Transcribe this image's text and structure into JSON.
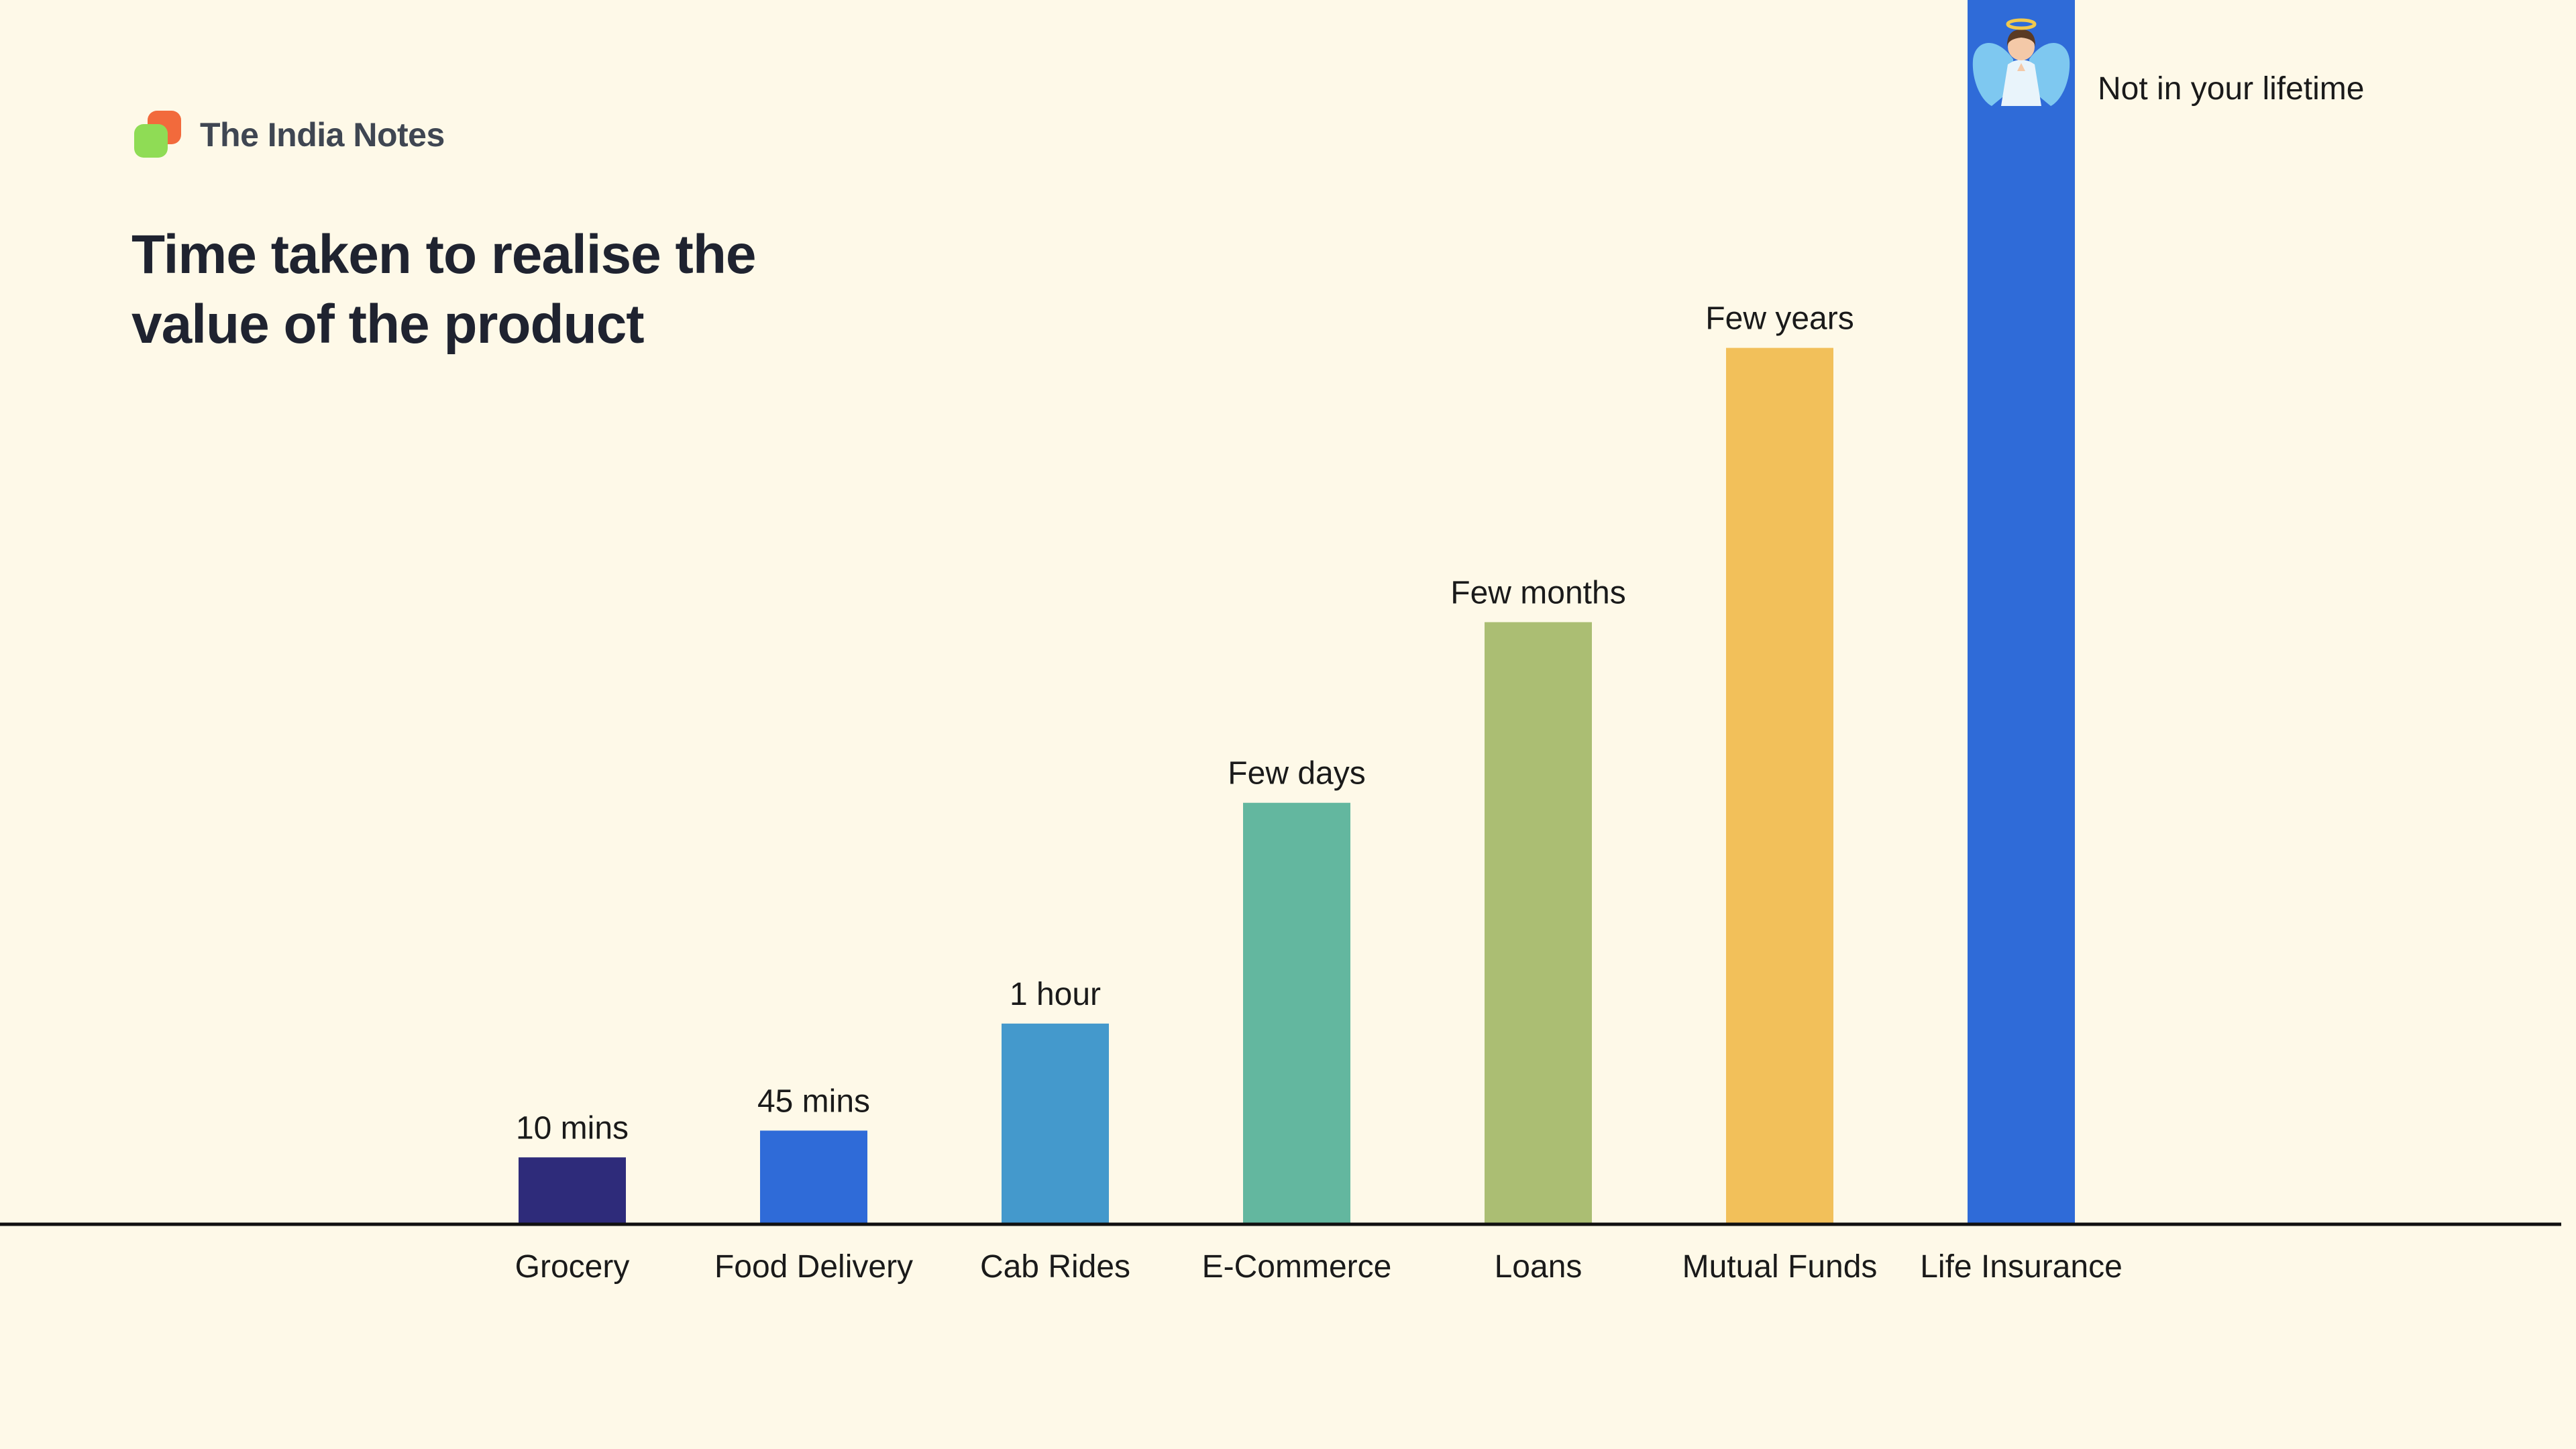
{
  "brand": {
    "name": "The India Notes"
  },
  "chart_data": {
    "type": "bar",
    "title": "Time taken to realise the value of the product",
    "categories": [
      "Grocery",
      "Food Delivery",
      "Cab Rides",
      "E-Commerce",
      "Loans",
      "Mutual Funds",
      "Life Insurance"
    ],
    "values": [
      1,
      1.4,
      3,
      6.3,
      9,
      13.1,
      18.3
    ],
    "value_labels": [
      "10 mins",
      "45 mins",
      "1 hour",
      "Few days",
      "Few months",
      "Few years",
      "Not in your lifetime"
    ],
    "colors": [
      "#2e2b7a",
      "#2f6bd8",
      "#4499cc",
      "#63b79f",
      "#abbe73",
      "#f2c05a",
      "#2f6bd8"
    ],
    "xlabel": "",
    "ylabel": "",
    "ylim": [
      0,
      18.3
    ],
    "grid": false,
    "legend": "none",
    "annotation_icon": "angel-icon"
  }
}
